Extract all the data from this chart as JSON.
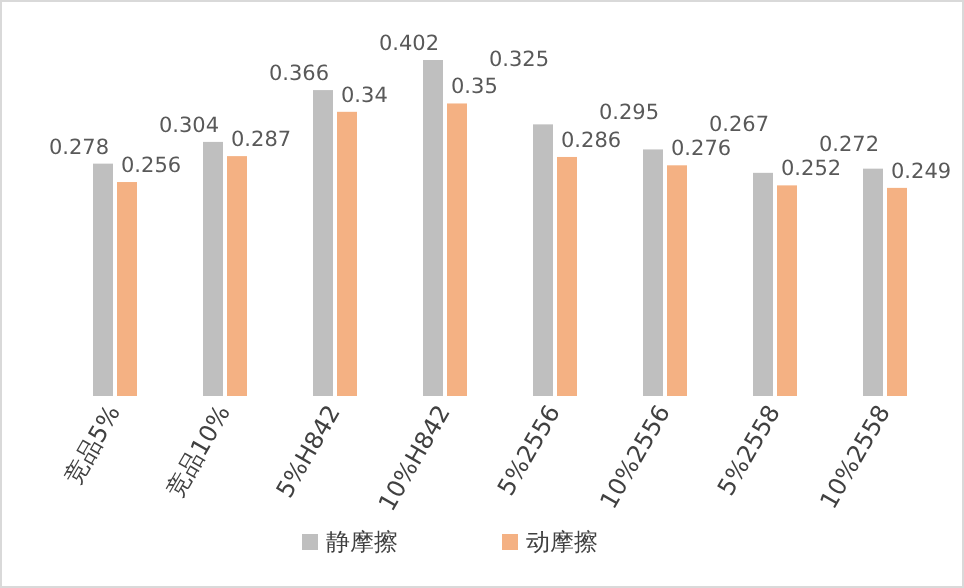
{
  "chart_data": {
    "type": "bar",
    "data_labels": true,
    "legend": "bottom",
    "categories": [
      "竞品5%",
      "竞品10%",
      "5%H842",
      "10%H842",
      "5%2556",
      "10%2556",
      "5%2558",
      "10%2558"
    ],
    "series": [
      {
        "name": "静摩擦",
        "color": "#bfbfbf",
        "values": [
          0.278,
          0.304,
          0.366,
          0.402,
          0.325,
          0.295,
          0.267,
          0.272
        ]
      },
      {
        "name": "动摩擦",
        "color": "#f4b183",
        "values": [
          0.256,
          0.287,
          0.34,
          0.35,
          0.286,
          0.276,
          0.252,
          0.249
        ]
      }
    ]
  }
}
